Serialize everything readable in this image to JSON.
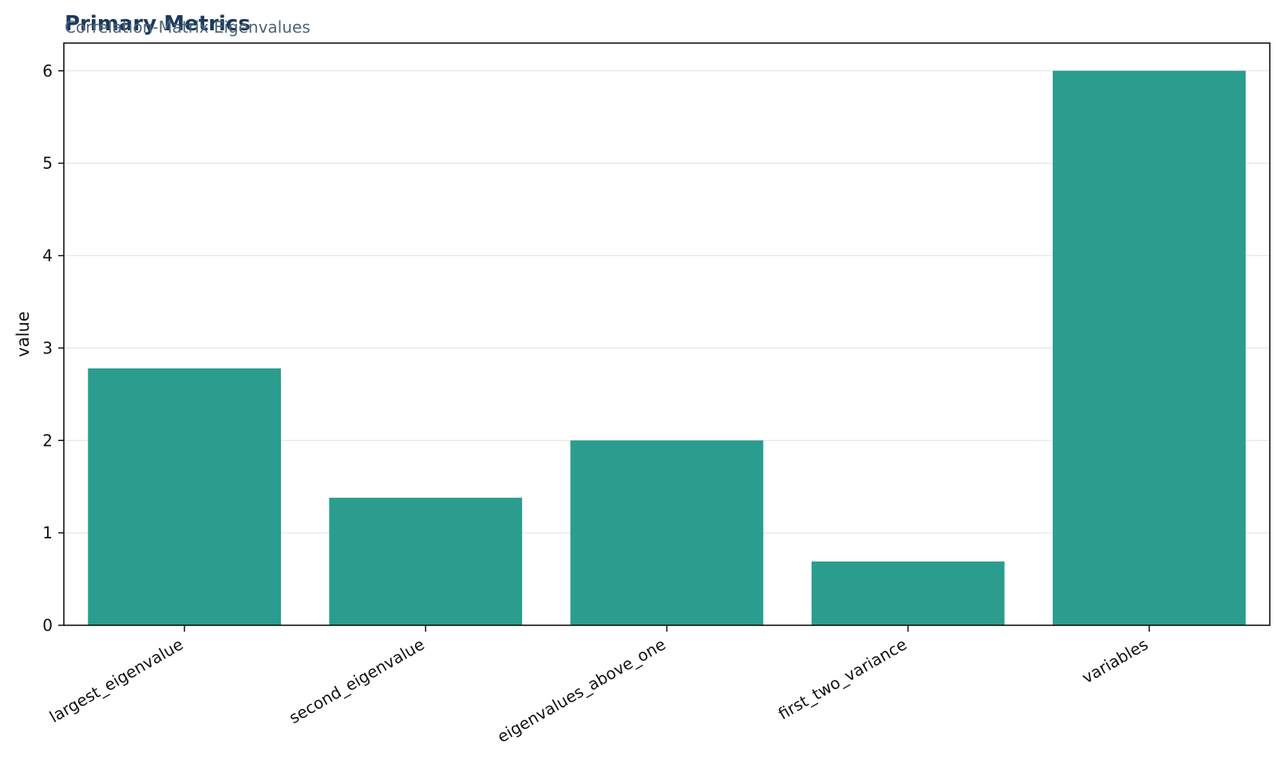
{
  "title": "Primary Metrics",
  "subtitle": "Correlation-Matrix Eigenvalues",
  "colors": {
    "bar": "#2a9d8f",
    "title": "#1b3a5c",
    "subtitle": "#4f6478",
    "grid": "#e6e6e6",
    "axis": "#111111"
  },
  "chart_data": {
    "type": "bar",
    "title": "Primary Metrics",
    "subtitle": "Correlation-Matrix Eigenvalues",
    "xlabel": "",
    "ylabel": "value",
    "categories": [
      "largest_eigenvalue",
      "second_eigenvalue",
      "eigenvalues_above_one",
      "first_two_variance",
      "variables"
    ],
    "values": [
      2.78,
      1.38,
      2.0,
      0.69,
      6.0
    ],
    "ylim": [
      0,
      6.3
    ],
    "yticks": [
      0,
      1,
      2,
      3,
      4,
      5,
      6
    ],
    "grid": "y",
    "legend": "none"
  }
}
